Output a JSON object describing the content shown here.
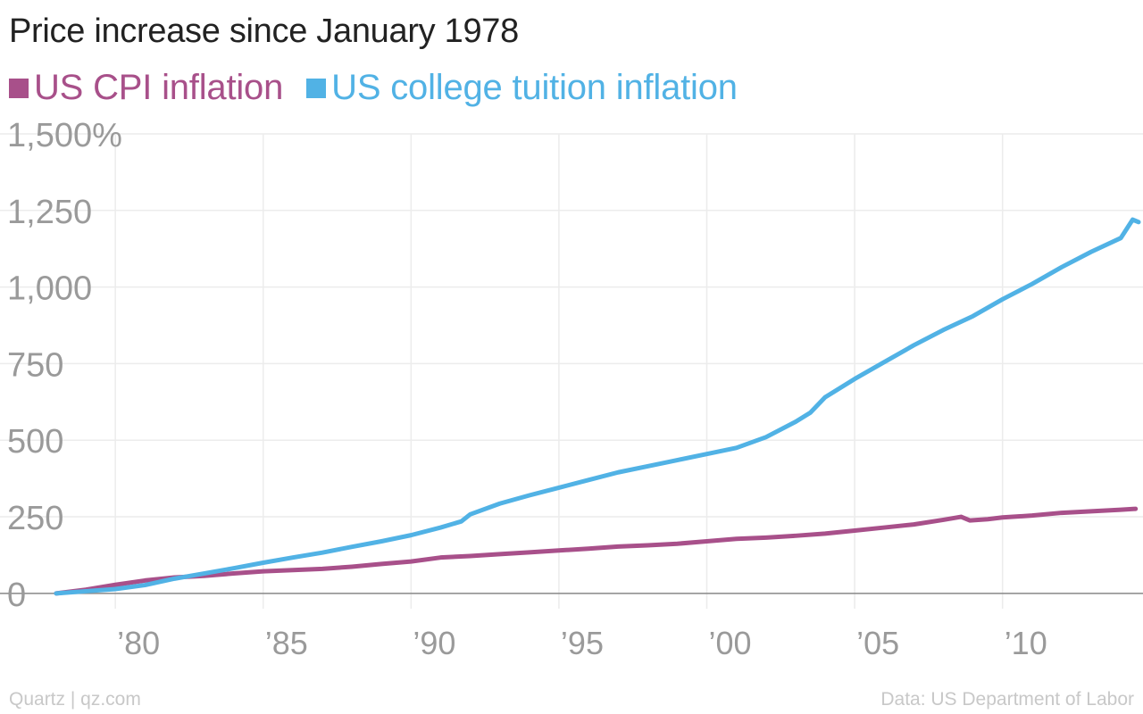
{
  "header": {
    "title": "Price increase since January 1978"
  },
  "footer": {
    "source_left": "Quartz | qz.com",
    "source_right": "Data: US Department of Labor"
  },
  "chart_data": {
    "type": "line",
    "title": "Price increase since January 1978",
    "xlabel": "",
    "ylabel": "",
    "xlim": [
      1976.1,
      2014.75
    ],
    "ylim": [
      -50,
      1500
    ],
    "y_ticks": [
      0,
      250,
      500,
      750,
      1000,
      1250,
      1500
    ],
    "y_tick_labels": [
      "0",
      "250",
      "500",
      "750",
      "1,000",
      "1,250",
      "1,500%"
    ],
    "x_ticks": [
      1980,
      1985,
      1990,
      1995,
      2000,
      2005,
      2010
    ],
    "x_tick_labels": [
      "’80",
      "’85",
      "’90",
      "’95",
      "’00",
      "’05",
      "’10"
    ],
    "grid": true,
    "legend_position": "top-left",
    "series": [
      {
        "name": "US CPI inflation",
        "color": "#a8508a",
        "x": [
          1978.0,
          1979.0,
          1980.0,
          1981.0,
          1982.0,
          1983.0,
          1984.0,
          1985.0,
          1986.0,
          1987.0,
          1988.0,
          1989.0,
          1990.0,
          1991.0,
          1992.0,
          1993.0,
          1994.0,
          1995.0,
          1996.0,
          1997.0,
          1998.0,
          1999.0,
          2000.0,
          2001.0,
          2002.0,
          2003.0,
          2004.0,
          2005.0,
          2006.0,
          2007.0,
          2008.0,
          2008.6,
          2008.9,
          2009.5,
          2010.0,
          2011.0,
          2012.0,
          2013.0,
          2014.0,
          2014.5
        ],
        "y": [
          0,
          12,
          28,
          42,
          52,
          57,
          65,
          72,
          76,
          80,
          87,
          96,
          104,
          117,
          122,
          128,
          134,
          140,
          146,
          153,
          157,
          162,
          170,
          178,
          182,
          188,
          195,
          205,
          215,
          225,
          240,
          250,
          238,
          242,
          248,
          254,
          263,
          268,
          273,
          276
        ]
      },
      {
        "name": "US college tuition inflation",
        "color": "#51b2e5",
        "x": [
          1978.0,
          1979.0,
          1980.0,
          1981.0,
          1982.0,
          1983.0,
          1984.0,
          1985.0,
          1986.0,
          1987.0,
          1988.0,
          1989.0,
          1990.0,
          1991.0,
          1991.7,
          1992.0,
          1993.0,
          1994.0,
          1995.0,
          1996.0,
          1997.0,
          1998.0,
          1999.0,
          2000.0,
          2001.0,
          2002.0,
          2003.0,
          2003.5,
          2004.0,
          2005.0,
          2006.0,
          2007.0,
          2008.0,
          2009.0,
          2010.0,
          2011.0,
          2012.0,
          2013.0,
          2014.0,
          2014.4,
          2014.6
        ],
        "y": [
          0,
          7,
          14,
          27,
          48,
          65,
          82,
          100,
          117,
          133,
          152,
          170,
          190,
          215,
          235,
          258,
          293,
          320,
          345,
          370,
          395,
          415,
          435,
          455,
          475,
          510,
          560,
          590,
          640,
          700,
          755,
          810,
          860,
          905,
          960,
          1010,
          1065,
          1115,
          1160,
          1220,
          1212
        ]
      }
    ]
  }
}
